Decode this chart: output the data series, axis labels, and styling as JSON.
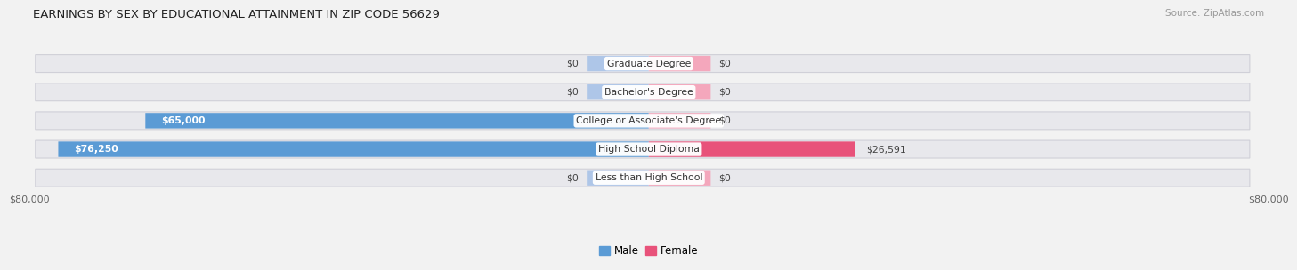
{
  "title": "EARNINGS BY SEX BY EDUCATIONAL ATTAINMENT IN ZIP CODE 56629",
  "source": "Source: ZipAtlas.com",
  "categories": [
    "Less than High School",
    "High School Diploma",
    "College or Associate's Degree",
    "Bachelor's Degree",
    "Graduate Degree"
  ],
  "male_values": [
    0,
    76250,
    65000,
    0,
    0
  ],
  "female_values": [
    0,
    26591,
    0,
    0,
    0
  ],
  "male_color_full": "#5b9bd5",
  "male_color_zero": "#aec6e8",
  "female_color_full": "#e8527a",
  "female_color_zero": "#f4a7bc",
  "axis_max": 80000,
  "background_color": "#f2f2f2",
  "bar_bg_color": "#e8e8ec",
  "bar_height": 0.62,
  "legend_male_color": "#5b9bd5",
  "legend_female_color": "#e8527a",
  "zero_bar_width": 8000,
  "label_fontsize": 7.8,
  "title_fontsize": 9.5
}
